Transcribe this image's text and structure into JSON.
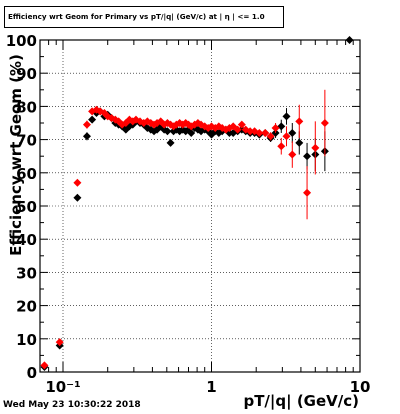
{
  "title": "Efficiency wrt Geom for Primary vs pT/|q| (GeV/c) at | η | <= 1.0",
  "timestamp": "Wed May 23 10:30:22 2018",
  "colors": {
    "series_black": "#000000",
    "series_red": "#ff0000",
    "frame": "#000000",
    "grid": "#000000"
  },
  "chart_data": {
    "type": "scatter",
    "title": "Efficiency wrt Geom for Primary vs pT/|q| (GeV/c) at | η | <= 1.0",
    "xlabel": "pT/|q| (GeV/c)",
    "ylabel": "Efficiency wrt Geom (%)",
    "xscale": "log",
    "xlim": [
      0.07,
      10
    ],
    "ylim": [
      0,
      100
    ],
    "grid": true,
    "y_ticks": [
      0,
      10,
      20,
      30,
      40,
      50,
      60,
      70,
      80,
      90,
      100
    ],
    "y_tick_labels": [
      "0",
      "10",
      "20",
      "30",
      "40",
      "50",
      "60",
      "70",
      "80",
      "90",
      "100"
    ],
    "x_ticks": [
      0.1,
      1,
      10
    ],
    "x_tick_labels": [
      "10⁻¹",
      "1",
      "10"
    ],
    "series": [
      {
        "color": "#000000",
        "marker": "diamond",
        "points": [
          [
            0.075,
            1.5,
            0
          ],
          [
            0.095,
            8,
            0
          ],
          [
            0.125,
            52.5,
            0.6
          ],
          [
            0.145,
            71,
            1.2
          ],
          [
            0.157,
            76,
            1.0
          ],
          [
            0.168,
            78,
            0.8
          ],
          [
            0.178,
            78.5,
            0.6
          ],
          [
            0.19,
            77,
            0.5
          ],
          [
            0.2,
            77.5,
            0.5
          ],
          [
            0.212,
            76.5,
            0.5
          ],
          [
            0.225,
            75,
            0.5
          ],
          [
            0.237,
            74.5,
            0.5
          ],
          [
            0.25,
            74,
            0.5
          ],
          [
            0.265,
            73,
            0.5
          ],
          [
            0.28,
            74,
            0.5
          ],
          [
            0.295,
            74.5,
            0.5
          ],
          [
            0.31,
            75.5,
            0.5
          ],
          [
            0.33,
            75,
            0.5
          ],
          [
            0.35,
            74.5,
            0.5
          ],
          [
            0.37,
            73.5,
            0.5
          ],
          [
            0.39,
            73,
            0.5
          ],
          [
            0.41,
            72.5,
            0.5
          ],
          [
            0.43,
            73,
            0.5
          ],
          [
            0.455,
            74,
            0.5
          ],
          [
            0.48,
            73,
            0.5
          ],
          [
            0.505,
            72.5,
            0.5
          ],
          [
            0.53,
            69,
            0.5
          ],
          [
            0.555,
            72.5,
            0.5
          ],
          [
            0.58,
            73,
            0.5
          ],
          [
            0.61,
            72.5,
            0.5
          ],
          [
            0.64,
            73,
            0.5
          ],
          [
            0.67,
            72.5,
            0.5
          ],
          [
            0.7,
            73,
            0.5
          ],
          [
            0.73,
            72,
            0.5
          ],
          [
            0.77,
            73.5,
            0.5
          ],
          [
            0.81,
            73,
            0.5
          ],
          [
            0.85,
            72.5,
            0.5
          ],
          [
            0.9,
            73,
            0.5
          ],
          [
            0.95,
            72.5,
            0.5
          ],
          [
            1.0,
            71.5,
            0.5
          ],
          [
            1.06,
            72.5,
            0.5
          ],
          [
            1.12,
            72,
            0.5
          ],
          [
            1.18,
            72.5,
            0.5
          ],
          [
            1.25,
            73,
            0.5
          ],
          [
            1.32,
            72,
            0.5
          ],
          [
            1.4,
            72,
            0.5
          ],
          [
            1.5,
            72.5,
            0.6
          ],
          [
            1.6,
            73,
            0.6
          ],
          [
            1.7,
            72.5,
            0.6
          ],
          [
            1.82,
            72,
            0.6
          ],
          [
            1.95,
            72,
            0.7
          ],
          [
            2.1,
            71.5,
            0.8
          ],
          [
            2.3,
            72,
            1.0
          ],
          [
            2.5,
            70.5,
            1.2
          ],
          [
            2.7,
            72,
            1.5
          ],
          [
            2.95,
            74,
            2
          ],
          [
            3.2,
            77,
            2.5
          ],
          [
            3.5,
            72,
            3
          ],
          [
            3.9,
            69,
            3.5
          ],
          [
            4.4,
            65,
            4
          ],
          [
            5.0,
            65.5,
            5
          ],
          [
            5.8,
            66.5,
            6
          ],
          [
            8.5,
            100,
            0
          ]
        ]
      },
      {
        "color": "#ff0000",
        "marker": "diamond",
        "points": [
          [
            0.075,
            2,
            0
          ],
          [
            0.095,
            9,
            0
          ],
          [
            0.125,
            57,
            0.6
          ],
          [
            0.145,
            74.5,
            1.2
          ],
          [
            0.157,
            78.5,
            1.0
          ],
          [
            0.168,
            79,
            0.8
          ],
          [
            0.178,
            78.5,
            0.6
          ],
          [
            0.19,
            78,
            0.5
          ],
          [
            0.2,
            77,
            0.5
          ],
          [
            0.212,
            76.5,
            0.5
          ],
          [
            0.225,
            76,
            0.5
          ],
          [
            0.237,
            75.5,
            0.5
          ],
          [
            0.25,
            74.5,
            0.5
          ],
          [
            0.265,
            75,
            0.5
          ],
          [
            0.28,
            76,
            0.5
          ],
          [
            0.295,
            75.5,
            0.5
          ],
          [
            0.31,
            76,
            0.5
          ],
          [
            0.33,
            75.5,
            0.5
          ],
          [
            0.35,
            75,
            0.5
          ],
          [
            0.37,
            75.5,
            0.5
          ],
          [
            0.39,
            75,
            0.5
          ],
          [
            0.41,
            74.5,
            0.5
          ],
          [
            0.43,
            75,
            0.5
          ],
          [
            0.455,
            75.5,
            0.5
          ],
          [
            0.48,
            74.5,
            0.5
          ],
          [
            0.505,
            75,
            0.5
          ],
          [
            0.53,
            74.5,
            0.5
          ],
          [
            0.555,
            74,
            0.5
          ],
          [
            0.58,
            74.5,
            0.5
          ],
          [
            0.61,
            75,
            0.5
          ],
          [
            0.64,
            74.5,
            0.5
          ],
          [
            0.67,
            75,
            0.5
          ],
          [
            0.7,
            74.5,
            0.5
          ],
          [
            0.73,
            74,
            0.5
          ],
          [
            0.77,
            74.5,
            0.5
          ],
          [
            0.81,
            75,
            0.5
          ],
          [
            0.85,
            74.5,
            0.5
          ],
          [
            0.9,
            74,
            0.5
          ],
          [
            0.95,
            73.5,
            0.5
          ],
          [
            1.0,
            74,
            0.5
          ],
          [
            1.06,
            73.5,
            0.5
          ],
          [
            1.12,
            74,
            0.5
          ],
          [
            1.18,
            73.5,
            0.5
          ],
          [
            1.25,
            73,
            0.5
          ],
          [
            1.32,
            73.5,
            0.5
          ],
          [
            1.4,
            74,
            0.5
          ],
          [
            1.5,
            73,
            0.6
          ],
          [
            1.6,
            74.5,
            0.6
          ],
          [
            1.7,
            73,
            0.6
          ],
          [
            1.82,
            72.5,
            0.6
          ],
          [
            1.95,
            72.5,
            0.7
          ],
          [
            2.1,
            72,
            0.8
          ],
          [
            2.3,
            72,
            1.0
          ],
          [
            2.5,
            71,
            1.2
          ],
          [
            2.7,
            73.5,
            1.5
          ],
          [
            2.95,
            68,
            2.5
          ],
          [
            3.2,
            71,
            3
          ],
          [
            3.5,
            65.5,
            4
          ],
          [
            3.9,
            75.5,
            5
          ],
          [
            4.4,
            54,
            8
          ],
          [
            5.0,
            67.5,
            8
          ],
          [
            5.8,
            75,
            10
          ]
        ]
      }
    ]
  }
}
